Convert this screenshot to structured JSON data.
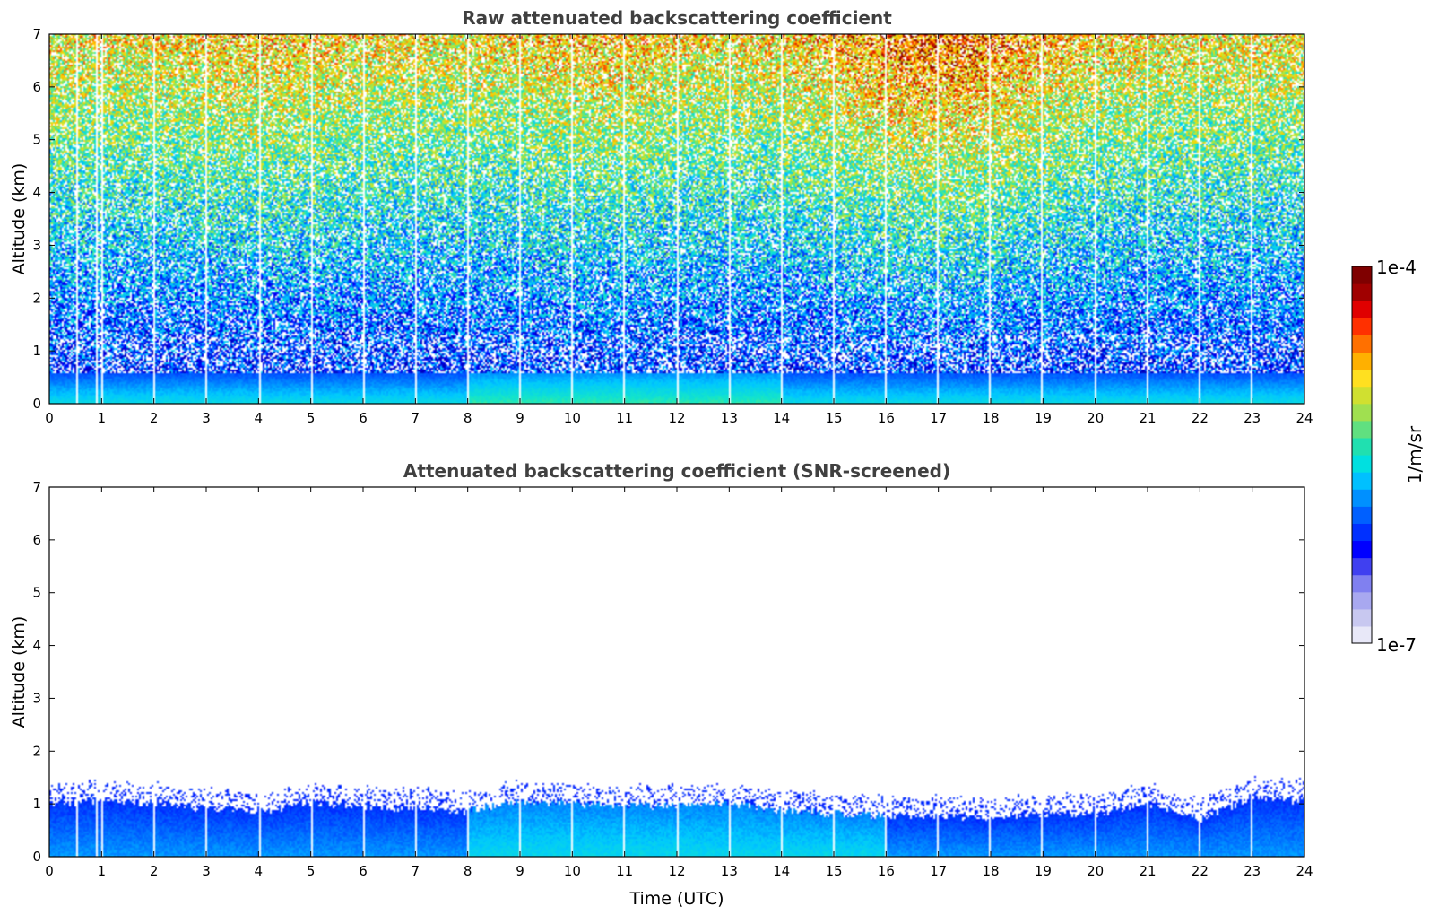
{
  "chart_data": [
    {
      "type": "heatmap",
      "title": "Raw attenuated backscattering coefficient",
      "xlabel": "",
      "ylabel": "Altitude (km)",
      "xlim": [
        0,
        24
      ],
      "ylim": [
        0,
        7
      ],
      "xticks": [
        "0",
        "1",
        "2",
        "3",
        "4",
        "5",
        "6",
        "7",
        "8",
        "9",
        "10",
        "11",
        "12",
        "13",
        "14",
        "15",
        "16",
        "17",
        "18",
        "19",
        "20",
        "21",
        "22",
        "23",
        "24"
      ],
      "yticks": [
        "0",
        "1",
        "2",
        "3",
        "4",
        "5",
        "6",
        "7"
      ],
      "color_scale": "log",
      "value_range": [
        1e-07,
        0.0001
      ],
      "field": "noisy backscatter increasing with altitude; strong low-level aerosol layer below ~0.8 km; highest noise 15-19 UTC above 4 km",
      "data_gap_times_utc": [
        0.5,
        0.9,
        1.0,
        2.0,
        3.0,
        4.0,
        5.0,
        6.0,
        7.0,
        8.0,
        9.0,
        10.0,
        11.0,
        12.0,
        13.0,
        14.0,
        15.0,
        16.0,
        17.0,
        18.0,
        19.0,
        20.0,
        21.0,
        22.0,
        23.0
      ]
    },
    {
      "type": "heatmap",
      "title": "Attenuated backscattering coefficient (SNR-screened)",
      "xlabel": "Time (UTC)",
      "ylabel": "Altitude (km)",
      "xlim": [
        0,
        24
      ],
      "ylim": [
        0,
        7
      ],
      "xticks": [
        "0",
        "1",
        "2",
        "3",
        "4",
        "5",
        "6",
        "7",
        "8",
        "9",
        "10",
        "11",
        "12",
        "13",
        "14",
        "15",
        "16",
        "17",
        "18",
        "19",
        "20",
        "21",
        "22",
        "23",
        "24"
      ],
      "yticks": [
        "0",
        "1",
        "2",
        "3",
        "4",
        "5",
        "6",
        "7"
      ],
      "color_scale": "log",
      "value_range": [
        1e-07,
        0.0001
      ],
      "layer_top_km": {
        "time_utc": [
          0,
          1,
          2,
          3,
          4,
          5,
          6,
          7,
          8,
          9,
          10,
          11,
          12,
          13,
          14,
          15,
          16,
          17,
          18,
          19,
          20,
          21,
          22,
          23,
          24
        ],
        "height": [
          1.0,
          1.05,
          1.0,
          0.9,
          0.85,
          1.0,
          0.95,
          0.9,
          0.85,
          1.05,
          1.0,
          0.95,
          0.95,
          1.0,
          0.85,
          0.8,
          0.75,
          0.75,
          0.72,
          0.8,
          0.8,
          1.0,
          0.7,
          1.1,
          1.05
        ]
      }
    }
  ],
  "colorbar": {
    "label": "1/m/sr",
    "max_label": "1e-4",
    "min_label": "1e-7",
    "colors": [
      "#e8e8f8",
      "#c8c8f0",
      "#a8a8f0",
      "#8080f0",
      "#4040f0",
      "#0000ff",
      "#0030ff",
      "#0060ff",
      "#0090ff",
      "#00c0ff",
      "#00e0e0",
      "#20e0b0",
      "#60e080",
      "#a0e050",
      "#d0e030",
      "#ffe020",
      "#ffb000",
      "#ff7000",
      "#ff3000",
      "#e00000",
      "#a00000",
      "#7f0000"
    ]
  }
}
